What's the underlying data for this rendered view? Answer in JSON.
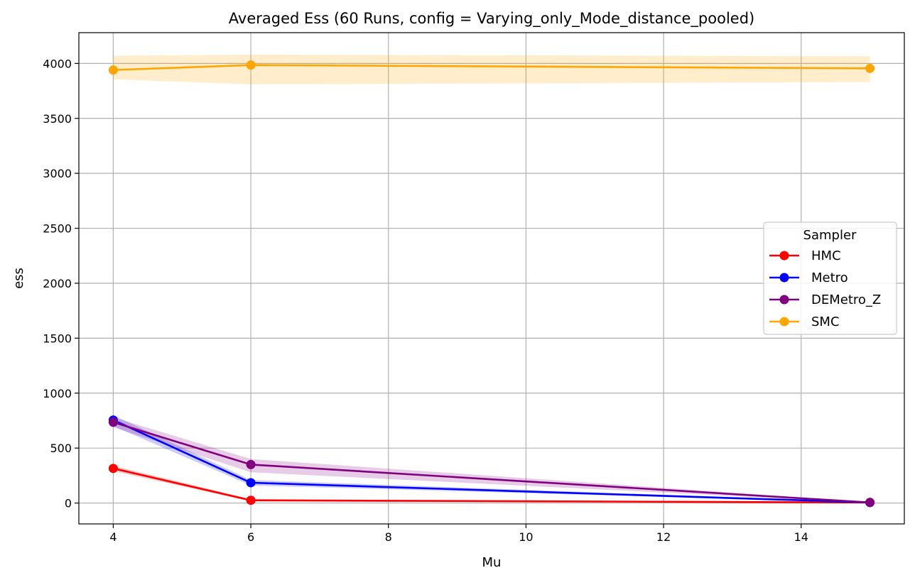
{
  "chart_data": {
    "type": "line",
    "title": "Averaged Ess (60 Runs, config = Varying_only_Mode_distance_pooled)",
    "xlabel": "Mu",
    "ylabel": "ess",
    "xlim": [
      3.5,
      15.5
    ],
    "ylim": [
      -190,
      4280
    ],
    "x_ticks": [
      4,
      6,
      8,
      10,
      12,
      14
    ],
    "y_ticks": [
      0,
      500,
      1000,
      1500,
      2000,
      2500,
      3000,
      3500,
      4000
    ],
    "grid": true,
    "legend": {
      "title": "Sampler",
      "placement": "center-right"
    },
    "x": [
      4,
      6,
      15
    ],
    "series": [
      {
        "name": "HMC",
        "color": "#ff0000",
        "values": [
          315,
          25,
          5
        ],
        "lower": [
          290,
          15,
          3
        ],
        "upper": [
          340,
          35,
          8
        ]
      },
      {
        "name": "Metro",
        "color": "#0000ff",
        "values": [
          755,
          185,
          5
        ],
        "lower": [
          700,
          160,
          3
        ],
        "upper": [
          800,
          210,
          8
        ]
      },
      {
        "name": "DEMetro_Z",
        "color": "#800080",
        "values": [
          735,
          350,
          5
        ],
        "lower": [
          690,
          280,
          3
        ],
        "upper": [
          780,
          400,
          8
        ]
      },
      {
        "name": "SMC",
        "color": "#ffa500",
        "values": [
          3940,
          3985,
          3955
        ],
        "lower": [
          3855,
          3810,
          3830
        ],
        "upper": [
          4070,
          4080,
          4065
        ]
      }
    ]
  }
}
